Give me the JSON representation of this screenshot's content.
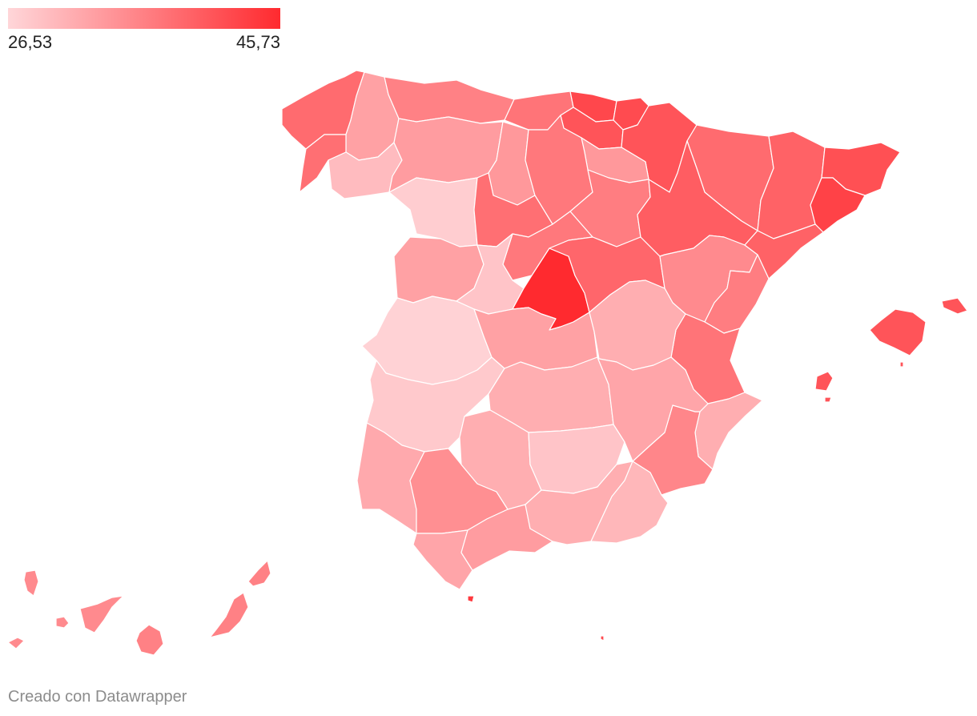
{
  "legend": {
    "min_label": "26,53",
    "max_label": "45,73",
    "min": 26.53,
    "max": 45.73,
    "color_low": "#ffd6d9",
    "color_high": "#ff2a2f"
  },
  "credit": "Creado con Datawrapper",
  "chart_data": {
    "type": "choropleth",
    "title": "",
    "scale": {
      "min": 26.53,
      "max": 45.73
    },
    "regions": [
      {
        "name": "A Coruña",
        "value": 38.5
      },
      {
        "name": "Lugo",
        "value": 32.5
      },
      {
        "name": "Pontevedra",
        "value": 38.0
      },
      {
        "name": "Ourense",
        "value": 29.5
      },
      {
        "name": "Asturias",
        "value": 36.0
      },
      {
        "name": "Cantabria",
        "value": 37.5
      },
      {
        "name": "Bizkaia",
        "value": 42.5
      },
      {
        "name": "Gipuzkoa",
        "value": 42.0
      },
      {
        "name": "Araba/Álava",
        "value": 41.0
      },
      {
        "name": "Navarra",
        "value": 41.0
      },
      {
        "name": "La Rioja",
        "value": 33.5
      },
      {
        "name": "León",
        "value": 33.0
      },
      {
        "name": "Palencia",
        "value": 33.5
      },
      {
        "name": "Burgos",
        "value": 37.0
      },
      {
        "name": "Zamora",
        "value": 27.5
      },
      {
        "name": "Valladolid",
        "value": 38.0
      },
      {
        "name": "Soria",
        "value": 36.5
      },
      {
        "name": "Segovia",
        "value": 37.0
      },
      {
        "name": "Salamanca",
        "value": 32.5
      },
      {
        "name": "Ávila",
        "value": 28.5
      },
      {
        "name": "Madrid",
        "value": 45.73
      },
      {
        "name": "Guadalajara",
        "value": 39.0
      },
      {
        "name": "Huesca",
        "value": 38.5
      },
      {
        "name": "Zaragoza",
        "value": 40.0
      },
      {
        "name": "Teruel",
        "value": 35.0
      },
      {
        "name": "Lleida",
        "value": 39.5
      },
      {
        "name": "Girona",
        "value": 41.5
      },
      {
        "name": "Barcelona",
        "value": 43.0
      },
      {
        "name": "Tarragona",
        "value": 39.5
      },
      {
        "name": "Castellón",
        "value": 36.5
      },
      {
        "name": "Valencia",
        "value": 37.5
      },
      {
        "name": "Alicante",
        "value": 31.0
      },
      {
        "name": "Murcia",
        "value": 35.5
      },
      {
        "name": "Cáceres",
        "value": 27.0
      },
      {
        "name": "Badajoz",
        "value": 28.0
      },
      {
        "name": "Toledo",
        "value": 32.5
      },
      {
        "name": "Cuenca",
        "value": 31.0
      },
      {
        "name": "Ciudad Real",
        "value": 31.0
      },
      {
        "name": "Albacete",
        "value": 32.0
      },
      {
        "name": "Huelva",
        "value": 31.5
      },
      {
        "name": "Sevilla",
        "value": 34.5
      },
      {
        "name": "Córdoba",
        "value": 31.0
      },
      {
        "name": "Jaén",
        "value": 28.5
      },
      {
        "name": "Cádiz",
        "value": 32.0
      },
      {
        "name": "Málaga",
        "value": 33.0
      },
      {
        "name": "Granada",
        "value": 31.0
      },
      {
        "name": "Almería",
        "value": 30.0
      },
      {
        "name": "Illes Balears",
        "value": 41.0
      },
      {
        "name": "Las Palmas",
        "value": 36.0
      },
      {
        "name": "Santa Cruz de Tenerife",
        "value": 35.0
      },
      {
        "name": "Ceuta",
        "value": 44.0
      },
      {
        "name": "Melilla",
        "value": 42.0
      }
    ]
  }
}
